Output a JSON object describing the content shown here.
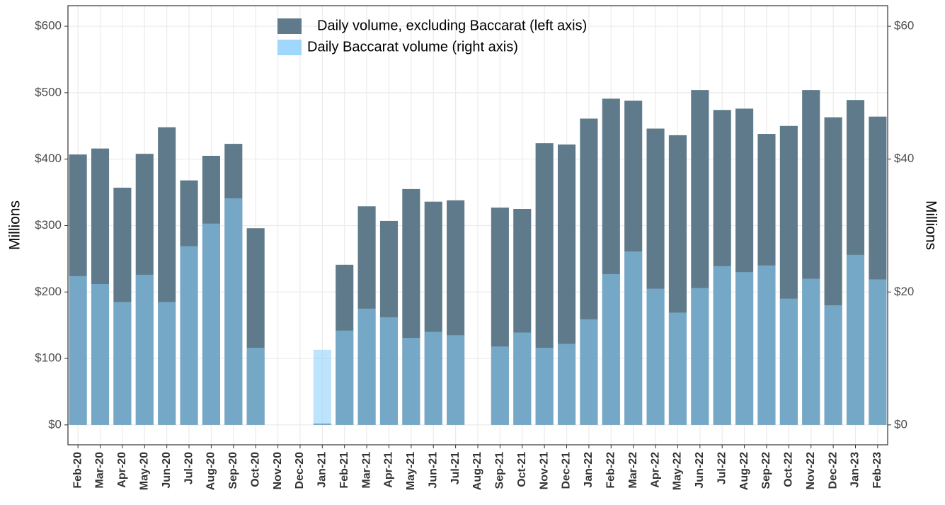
{
  "chart_data": {
    "type": "bar",
    "y_label": "Millions",
    "y2_label": "Millions",
    "categories": [
      "Feb-20",
      "Mar-20",
      "Apr-20",
      "May-20",
      "Jun-20",
      "Jul-20",
      "Aug-20",
      "Sep-20",
      "Oct-20",
      "Nov-20",
      "Dec-20",
      "Jan-21",
      "Feb-21",
      "Mar-21",
      "Apr-21",
      "May-21",
      "Jun-21",
      "Jul-21",
      "Aug-21",
      "Sep-21",
      "Oct-21",
      "Nov-21",
      "Dec-21",
      "Jan-22",
      "Feb-22",
      "Mar-22",
      "Apr-22",
      "May-22",
      "Jun-22",
      "Jul-22",
      "Aug-22",
      "Sep-22",
      "Oct-22",
      "Nov-22",
      "Dec-22",
      "Jan-23",
      "Feb-23"
    ],
    "series": [
      {
        "name": "Daily volume, excluding Baccarat (left axis)",
        "color": "#5f7a8a",
        "values": [
          407,
          416,
          357,
          408,
          448,
          368,
          405,
          423,
          296,
          null,
          null,
          2,
          241,
          329,
          307,
          355,
          336,
          338,
          null,
          327,
          325,
          424,
          422,
          461,
          491,
          488,
          446,
          436,
          504,
          474,
          476,
          438,
          450,
          504,
          463,
          489,
          464
        ]
      },
      {
        "name": "Daily Baccarat volume (right axis)",
        "color": "#87cefa",
        "axis": "y2",
        "values": [
          22.4,
          21.2,
          18.5,
          22.6,
          18.5,
          26.9,
          30.3,
          34.1,
          11.6,
          null,
          null,
          11.3,
          14.2,
          17.5,
          16.2,
          13.1,
          14.0,
          13.5,
          null,
          11.8,
          13.9,
          11.6,
          12.2,
          15.9,
          22.7,
          26.1,
          20.5,
          16.9,
          20.6,
          23.9,
          23.0,
          24.0,
          19.0,
          22.0,
          18.0,
          25.6,
          21.9
        ]
      }
    ],
    "ylim": [
      -30,
      631
    ],
    "yticks": [
      {
        "value": 0,
        "label": "$0"
      },
      {
        "value": 100,
        "label": "$100"
      },
      {
        "value": 200,
        "label": "$200"
      },
      {
        "value": 300,
        "label": "$300"
      },
      {
        "value": 400,
        "label": "$400"
      },
      {
        "value": 500,
        "label": "$500"
      },
      {
        "value": 600,
        "label": "$600"
      }
    ],
    "y2lim": [
      -3,
      63.1
    ],
    "y2ticks": [
      {
        "value": 0,
        "label": "$0"
      },
      {
        "value": 20,
        "label": "$20"
      },
      {
        "value": 40,
        "label": "$40"
      },
      {
        "value": 60,
        "label": "$60"
      }
    ],
    "grid": true,
    "legend": "top"
  }
}
